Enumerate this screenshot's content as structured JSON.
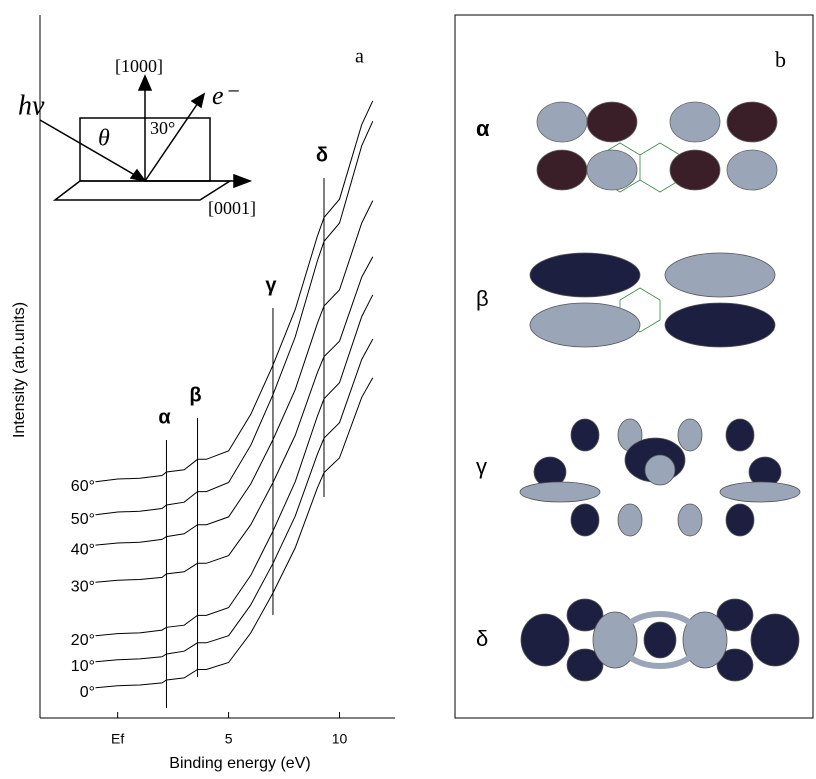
{
  "chart_data": {
    "type": "line",
    "xlabel": "Binding energy (eV)",
    "ylabel": "Intensity (arb.units)",
    "panel_label": "a",
    "x": [
      -1,
      0,
      1,
      2,
      2.2,
      3,
      3.6,
      4,
      5,
      6,
      7,
      8,
      9,
      9.3,
      10,
      11,
      11.5
    ],
    "series": [
      {
        "name": "0°",
        "color": "#000000",
        "values": [
          4.3,
          4.6,
          4.7,
          5.0,
          5.4,
          5.7,
          6.9,
          6.9,
          7.9,
          12.1,
          17.8,
          24.2,
          32.7,
          34.9,
          37.0,
          45.6,
          48.4
        ]
      },
      {
        "name": "10°",
        "color": "#000000",
        "values": [
          8.0,
          8.3,
          8.4,
          8.7,
          9.1,
          9.5,
          10.7,
          10.7,
          11.7,
          16.1,
          22.0,
          28.7,
          37.5,
          39.8,
          42.0,
          51.0,
          53.9
        ]
      },
      {
        "name": "20°",
        "color": "#000000",
        "values": [
          11.7,
          12.0,
          12.1,
          12.5,
          12.9,
          13.2,
          14.6,
          14.6,
          15.7,
          20.3,
          26.6,
          33.6,
          42.9,
          45.4,
          47.7,
          57.1,
          60.2
        ]
      },
      {
        "name": "30°",
        "color": "#000000",
        "values": [
          19.3,
          19.6,
          19.7,
          20.0,
          20.5,
          20.8,
          22.0,
          22.0,
          23.1,
          27.5,
          33.5,
          40.2,
          49.1,
          51.4,
          53.6,
          62.7,
          65.6
        ]
      },
      {
        "name": "40°",
        "color": "#000000",
        "values": [
          24.6,
          24.9,
          25.0,
          25.4,
          25.8,
          26.2,
          27.5,
          27.5,
          28.6,
          33.3,
          39.6,
          46.7,
          56.1,
          58.6,
          60.9,
          70.4,
          73.6
        ]
      },
      {
        "name": "50°",
        "color": "#000000",
        "values": [
          28.9,
          29.3,
          29.4,
          29.8,
          30.3,
          30.7,
          32.2,
          32.2,
          33.5,
          38.8,
          46.0,
          54.2,
          65.0,
          67.8,
          70.4,
          81.4,
          84.9
        ]
      },
      {
        "name": "60°",
        "color": "#000000",
        "values": [
          33.6,
          34.0,
          34.1,
          34.5,
          35.0,
          35.3,
          36.8,
          36.8,
          38.0,
          43.2,
          50.2,
          58.1,
          68.5,
          71.2,
          73.8,
          84.4,
          87.8
        ]
      }
    ],
    "xlim": [
      -3.5,
      12.5
    ],
    "ylim": [
      0,
      100
    ],
    "xticks": [
      {
        "value": 0,
        "label": "Ef"
      },
      5,
      10
    ],
    "peaks": [
      {
        "label": "α",
        "x": 2.2
      },
      {
        "label": "β",
        "x": 3.6
      },
      {
        "label": "γ",
        "x": 7
      },
      {
        "label": "δ",
        "x": 9.3
      }
    ],
    "inset": {
      "photon": "hν",
      "angle": "θ",
      "emission": "30°",
      "electron": "e⁻",
      "normal": "[1000]",
      "surface": "[0001]"
    }
  },
  "panel_b": {
    "label": "b",
    "orbitals": [
      "α",
      "β",
      "γ",
      "δ"
    ]
  }
}
